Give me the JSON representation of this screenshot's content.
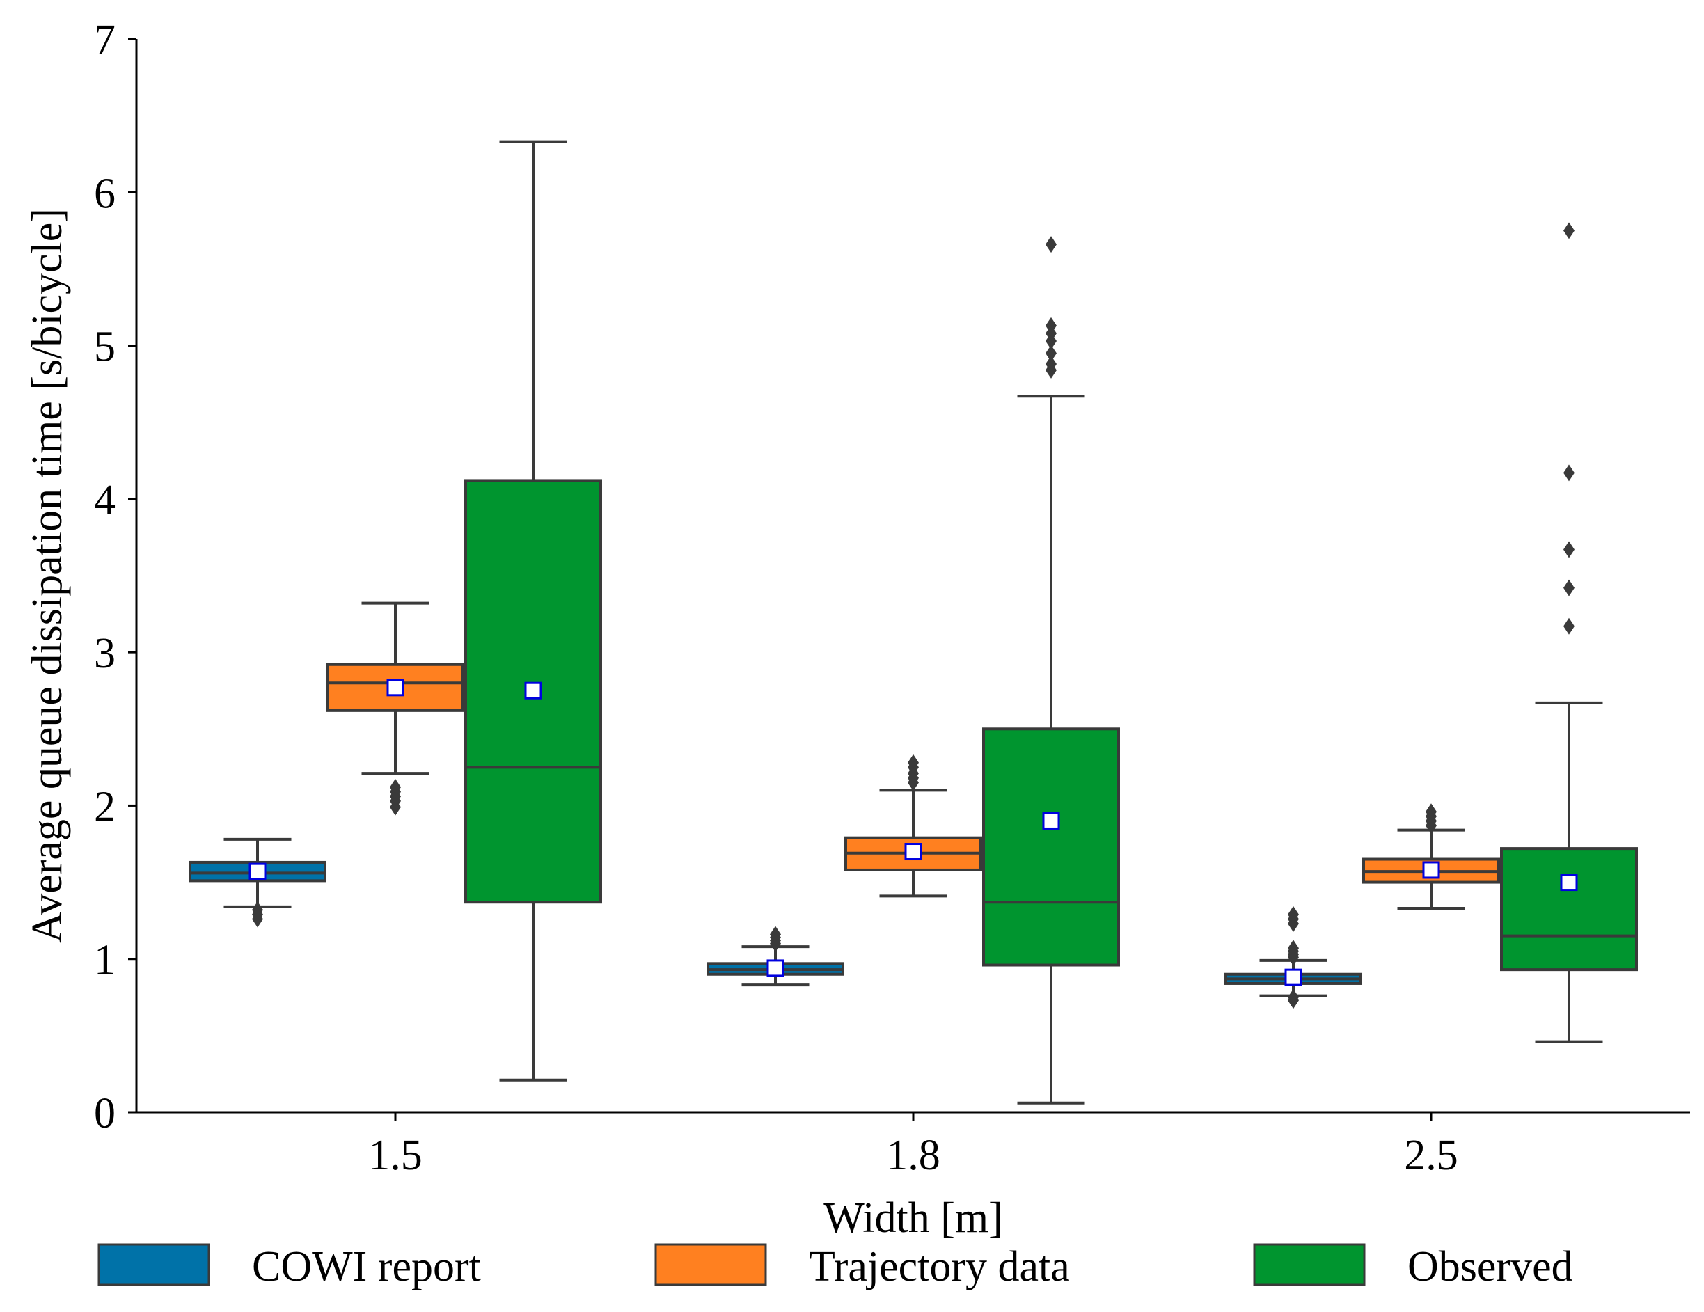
{
  "chart_data": {
    "type": "boxplot",
    "xlabel": "Width [m]",
    "ylabel": "Average queue dissipation time [s/bicycle]",
    "ylim": [
      0,
      7
    ],
    "yticks": [
      "0",
      "1",
      "2",
      "3",
      "4",
      "5",
      "6",
      "7"
    ],
    "categories": [
      "1.5",
      "1.8",
      "2.5"
    ],
    "legend_position": "bottom",
    "colors": {
      "COWI report": "#0072a8",
      "Trajectory data": "#ff8020",
      "Observed": "#00952f",
      "box_line": "#3a3a3a",
      "mean_marker_fill": "#ffffff",
      "mean_marker_edge": "#0000e0"
    },
    "series": [
      {
        "name": "COWI report",
        "boxes": [
          {
            "category": "1.5",
            "whisker_low": 1.34,
            "q1": 1.51,
            "median": 1.56,
            "q3": 1.63,
            "whisker_high": 1.78,
            "mean": 1.57,
            "outliers": [
              1.26,
              1.29,
              1.32
            ]
          },
          {
            "category": "1.8",
            "whisker_low": 0.83,
            "q1": 0.9,
            "median": 0.93,
            "q3": 0.97,
            "whisker_high": 1.08,
            "mean": 0.94,
            "outliers": [
              1.1,
              1.12,
              1.14,
              1.16
            ]
          },
          {
            "category": "2.5",
            "whisker_low": 0.76,
            "q1": 0.84,
            "median": 0.87,
            "q3": 0.9,
            "whisker_high": 0.99,
            "mean": 0.88,
            "outliers": [
              0.73,
              0.75,
              1.01,
              1.03,
              1.05,
              1.07,
              1.23,
              1.26,
              1.29
            ]
          }
        ]
      },
      {
        "name": "Trajectory data",
        "boxes": [
          {
            "category": "1.5",
            "whisker_low": 2.21,
            "q1": 2.62,
            "median": 2.8,
            "q3": 2.92,
            "whisker_high": 3.32,
            "mean": 2.77,
            "outliers": [
              1.99,
              2.03,
              2.06,
              2.09,
              2.12
            ]
          },
          {
            "category": "1.8",
            "whisker_low": 1.41,
            "q1": 1.58,
            "median": 1.69,
            "q3": 1.79,
            "whisker_high": 2.1,
            "mean": 1.7,
            "outliers": [
              2.15,
              2.18,
              2.21,
              2.25,
              2.28
            ]
          },
          {
            "category": "2.5",
            "whisker_low": 1.33,
            "q1": 1.5,
            "median": 1.57,
            "q3": 1.65,
            "whisker_high": 1.84,
            "mean": 1.58,
            "outliers": [
              1.87,
              1.9,
              1.93,
              1.96
            ]
          }
        ]
      },
      {
        "name": "Observed",
        "boxes": [
          {
            "category": "1.5",
            "whisker_low": 0.21,
            "q1": 1.37,
            "median": 2.25,
            "q3": 4.12,
            "whisker_high": 6.33,
            "mean": 2.75,
            "outliers": []
          },
          {
            "category": "1.8",
            "whisker_low": 0.06,
            "q1": 0.96,
            "median": 1.37,
            "q3": 2.5,
            "whisker_high": 4.67,
            "mean": 1.9,
            "outliers": [
              4.84,
              4.88,
              4.95,
              5.03,
              5.08,
              5.13,
              5.66
            ]
          },
          {
            "category": "2.5",
            "whisker_low": 0.46,
            "q1": 0.93,
            "median": 1.15,
            "q3": 1.72,
            "whisker_high": 2.67,
            "mean": 1.5,
            "outliers": [
              3.17,
              3.42,
              3.67,
              4.17,
              5.75
            ]
          }
        ]
      }
    ]
  }
}
